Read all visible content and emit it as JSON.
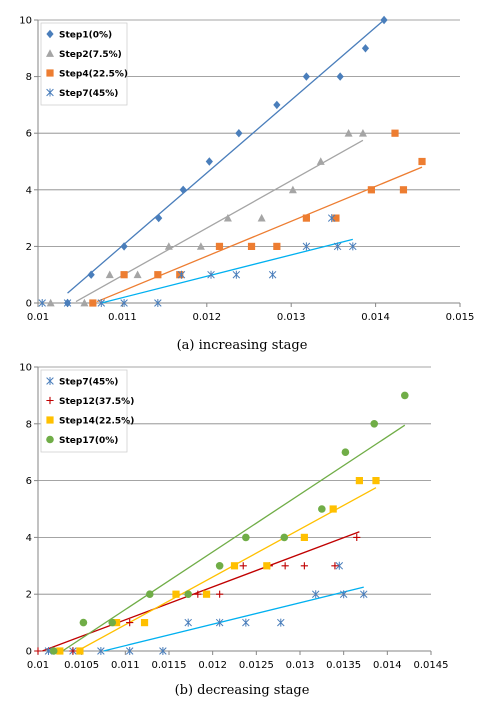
{
  "chart_data": [
    {
      "type": "scatter",
      "caption": "(a) increasing stage",
      "xlim": [
        0.01,
        0.015
      ],
      "ylim": [
        0,
        10
      ],
      "xticks": [
        "0.01",
        "0.011",
        "0.012",
        "0.013",
        "0.014",
        "0.015"
      ],
      "yticks": [
        "0",
        "2",
        "4",
        "6",
        "8",
        "10"
      ],
      "grid": "horizontal",
      "legend_position": "top-left",
      "series": [
        {
          "name": "Step1(0%)",
          "marker": "diamond",
          "color": "#4a7ebb",
          "points": [
            [
              0.01035,
              0
            ],
            [
              0.01063,
              1
            ],
            [
              0.01102,
              2
            ],
            [
              0.01143,
              3
            ],
            [
              0.01172,
              4
            ],
            [
              0.01203,
              5
            ],
            [
              0.01238,
              6
            ],
            [
              0.01283,
              7
            ],
            [
              0.01318,
              8
            ],
            [
              0.01358,
              8
            ],
            [
              0.01388,
              9
            ],
            [
              0.0141,
              10
            ]
          ],
          "trend": [
            [
              0.01035,
              0.35
            ],
            [
              0.0141,
              10
            ]
          ]
        },
        {
          "name": "Step2(7.5%)",
          "marker": "triangle",
          "color": "#a5a5a5",
          "points": [
            [
              0.01015,
              0
            ],
            [
              0.01055,
              0
            ],
            [
              0.01085,
              1
            ],
            [
              0.01118,
              1
            ],
            [
              0.01155,
              2
            ],
            [
              0.01193,
              2
            ],
            [
              0.01225,
              3
            ],
            [
              0.01265,
              3
            ],
            [
              0.01302,
              4
            ],
            [
              0.01335,
              5
            ],
            [
              0.01368,
              6
            ],
            [
              0.01385,
              6
            ]
          ],
          "trend": [
            [
              0.01045,
              0.05
            ],
            [
              0.01385,
              5.75
            ]
          ]
        },
        {
          "name": "Step4(22.5%)",
          "marker": "square",
          "color": "#ed7d31",
          "points": [
            [
              0.01065,
              0
            ],
            [
              0.01102,
              1
            ],
            [
              0.01142,
              1
            ],
            [
              0.01168,
              1
            ],
            [
              0.01215,
              2
            ],
            [
              0.01253,
              2
            ],
            [
              0.01283,
              2
            ],
            [
              0.01318,
              3
            ],
            [
              0.01353,
              3
            ],
            [
              0.01395,
              4
            ],
            [
              0.01423,
              6
            ],
            [
              0.01433,
              4
            ],
            [
              0.01455,
              5
            ]
          ],
          "trend": [
            [
              0.0107,
              0.05
            ],
            [
              0.01455,
              4.8
            ]
          ]
        },
        {
          "name": "Step7(45%)",
          "marker": "asterisk",
          "color": "#4a7ebb",
          "points": [
            [
              0.01005,
              0
            ],
            [
              0.01035,
              0
            ],
            [
              0.01075,
              0
            ],
            [
              0.01102,
              0
            ],
            [
              0.01142,
              0
            ],
            [
              0.0117,
              1
            ],
            [
              0.01205,
              1
            ],
            [
              0.01235,
              1
            ],
            [
              0.01278,
              1
            ],
            [
              0.01318,
              2
            ],
            [
              0.01348,
              3
            ],
            [
              0.01355,
              2
            ],
            [
              0.01373,
              2
            ]
          ],
          "trend": [
            [
              0.01075,
              0
            ],
            [
              0.01373,
              2.25
            ]
          ],
          "trend_color": "#00b0f0"
        }
      ]
    },
    {
      "type": "scatter",
      "caption": "(b) decreasing stage",
      "xlim": [
        0.01,
        0.0145
      ],
      "ylim": [
        0,
        10
      ],
      "xticks": [
        "0.01",
        "0.0105",
        "0.011",
        "0.0115",
        "0.012",
        "0.0125",
        "0.013",
        "0.0135",
        "0.014",
        "0.0145"
      ],
      "yticks": [
        "0",
        "2",
        "4",
        "6",
        "8",
        "10"
      ],
      "grid": "horizontal",
      "legend_position": "top-left",
      "series": [
        {
          "name": "Step7(45%)",
          "marker": "asterisk",
          "color": "#4a7ebb",
          "points": [
            [
              0.01012,
              0
            ],
            [
              0.0104,
              0
            ],
            [
              0.01072,
              0
            ],
            [
              0.01105,
              0
            ],
            [
              0.01143,
              0
            ],
            [
              0.01172,
              1
            ],
            [
              0.01208,
              1
            ],
            [
              0.01238,
              1
            ],
            [
              0.01278,
              1
            ],
            [
              0.01318,
              2
            ],
            [
              0.0135,
              2
            ],
            [
              0.01345,
              3
            ],
            [
              0.01373,
              2
            ]
          ],
          "trend": [
            [
              0.01075,
              0
            ],
            [
              0.01373,
              2.25
            ]
          ],
          "trend_color": "#00b0f0"
        },
        {
          "name": "Step12(37.5%)",
          "marker": "plus",
          "color": "#c00000",
          "points": [
            [
              0.01,
              0
            ],
            [
              0.0104,
              0
            ],
            [
              0.01105,
              1
            ],
            [
              0.01183,
              2
            ],
            [
              0.01208,
              2
            ],
            [
              0.01235,
              3
            ],
            [
              0.01265,
              3
            ],
            [
              0.01283,
              3
            ],
            [
              0.01305,
              3
            ],
            [
              0.0134,
              3
            ],
            [
              0.01365,
              4
            ]
          ],
          "trend": [
            [
              0.01005,
              0
            ],
            [
              0.01368,
              4.2
            ]
          ],
          "trend_color": "#c00000"
        },
        {
          "name": "Step14(22.5%)",
          "marker": "square",
          "color": "#ffc000",
          "points": [
            [
              0.01025,
              0
            ],
            [
              0.01048,
              0
            ],
            [
              0.0109,
              1
            ],
            [
              0.01122,
              1
            ],
            [
              0.01158,
              2
            ],
            [
              0.01193,
              2
            ],
            [
              0.01225,
              3
            ],
            [
              0.01262,
              3
            ],
            [
              0.01305,
              4
            ],
            [
              0.01338,
              5
            ],
            [
              0.01368,
              6
            ],
            [
              0.01387,
              6
            ]
          ],
          "trend": [
            [
              0.01045,
              0
            ],
            [
              0.01387,
              5.75
            ]
          ],
          "trend_color": "#ffc000"
        },
        {
          "name": "Step17(0%)",
          "marker": "circle",
          "color": "#70ad47",
          "points": [
            [
              0.01018,
              0
            ],
            [
              0.01052,
              1
            ],
            [
              0.01085,
              1
            ],
            [
              0.01128,
              2
            ],
            [
              0.01172,
              2
            ],
            [
              0.01208,
              3
            ],
            [
              0.01238,
              4
            ],
            [
              0.01282,
              4
            ],
            [
              0.01325,
              5
            ],
            [
              0.01352,
              7
            ],
            [
              0.01385,
              8
            ],
            [
              0.0142,
              9
            ]
          ],
          "trend": [
            [
              0.01028,
              0
            ],
            [
              0.0142,
              7.95
            ]
          ],
          "trend_color": "#70ad47"
        }
      ]
    }
  ]
}
